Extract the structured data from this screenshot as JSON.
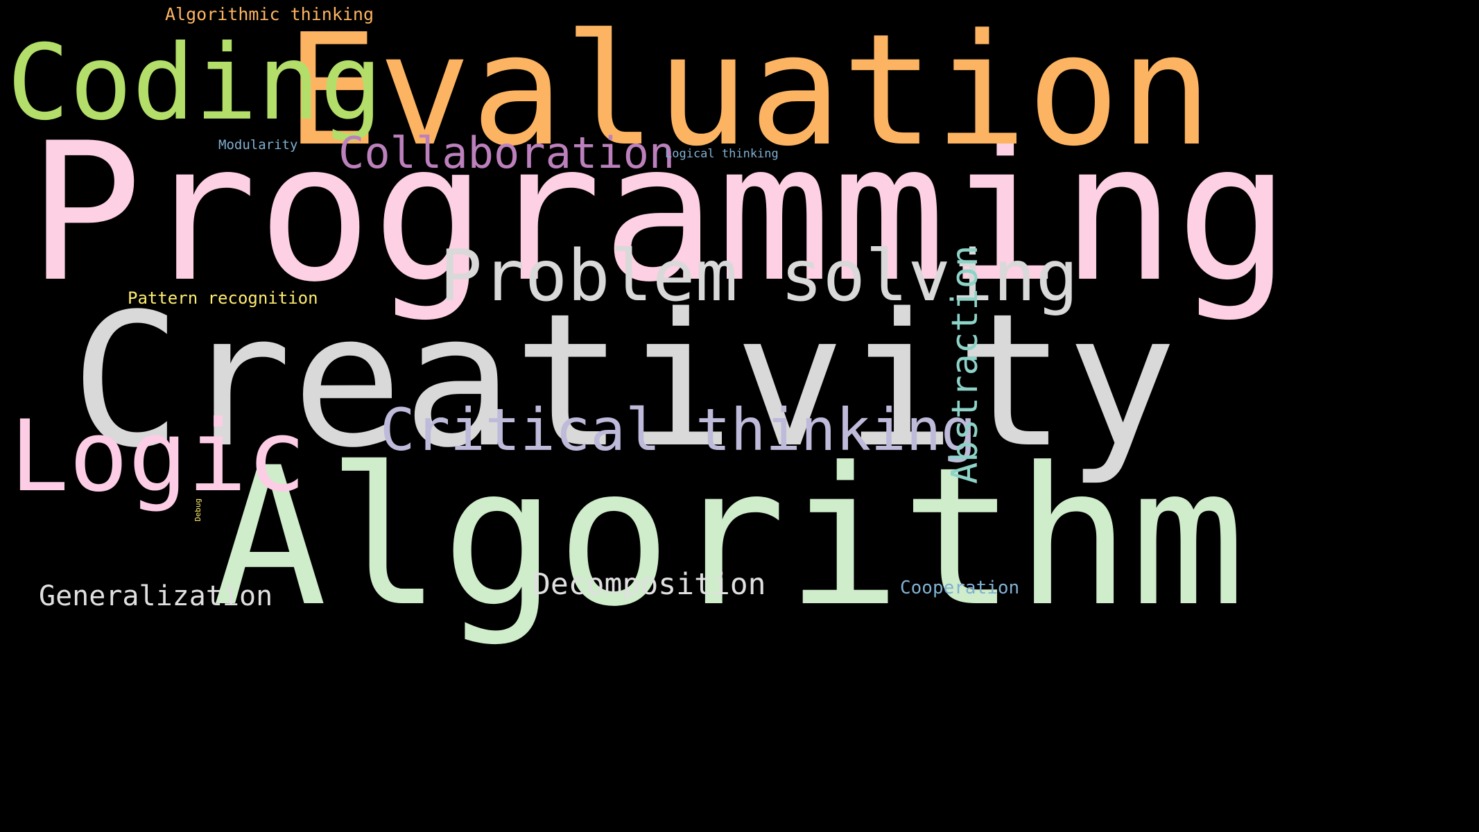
{
  "background": "#000000",
  "words": [
    {
      "id": "programming",
      "text": "Programming",
      "color": "#fdd0e3",
      "rotated": false
    },
    {
      "id": "creativity",
      "text": "Creativity",
      "color": "#d9d9d9",
      "rotated": false
    },
    {
      "id": "algorithm",
      "text": "Algorithm",
      "color": "#cfeccb",
      "rotated": false
    },
    {
      "id": "evaluation",
      "text": "Evaluation",
      "color": "#fdb462",
      "rotated": false
    },
    {
      "id": "coding",
      "text": "Coding",
      "color": "#b3de69",
      "rotated": false
    },
    {
      "id": "logic",
      "text": "Logic",
      "color": "#fccde5",
      "rotated": false
    },
    {
      "id": "problem-solving",
      "text": "Problem solving",
      "color": "#d9d9d9",
      "rotated": false
    },
    {
      "id": "critical-thinking",
      "text": "Critical thinking",
      "color": "#bebada",
      "rotated": false
    },
    {
      "id": "collaboration",
      "text": "Collaboration",
      "color": "#bc80bd",
      "rotated": false
    },
    {
      "id": "abstraction",
      "text": "Abstraction",
      "color": "#8dd3c7",
      "rotated": true
    },
    {
      "id": "decomposition",
      "text": "Decomposition",
      "color": "#e0e0e0",
      "rotated": false
    },
    {
      "id": "generalization",
      "text": "Generalization",
      "color": "#e0e0e0",
      "rotated": false
    },
    {
      "id": "algorithmic-thinking",
      "text": "Algorithmic thinking",
      "color": "#fdb462",
      "rotated": false
    },
    {
      "id": "pattern-recognition",
      "text": "Pattern recognition",
      "color": "#ffed6f",
      "rotated": false
    },
    {
      "id": "cooperation",
      "text": "Cooperation",
      "color": "#80b1d3",
      "rotated": false
    },
    {
      "id": "modularity",
      "text": "Modularity",
      "color": "#80b1d3",
      "rotated": false
    },
    {
      "id": "logical-thinking",
      "text": "Logical thinking",
      "color": "#80b1d3",
      "rotated": false
    },
    {
      "id": "debug",
      "text": "Debug",
      "color": "#ffed6f",
      "rotated": true
    }
  ]
}
